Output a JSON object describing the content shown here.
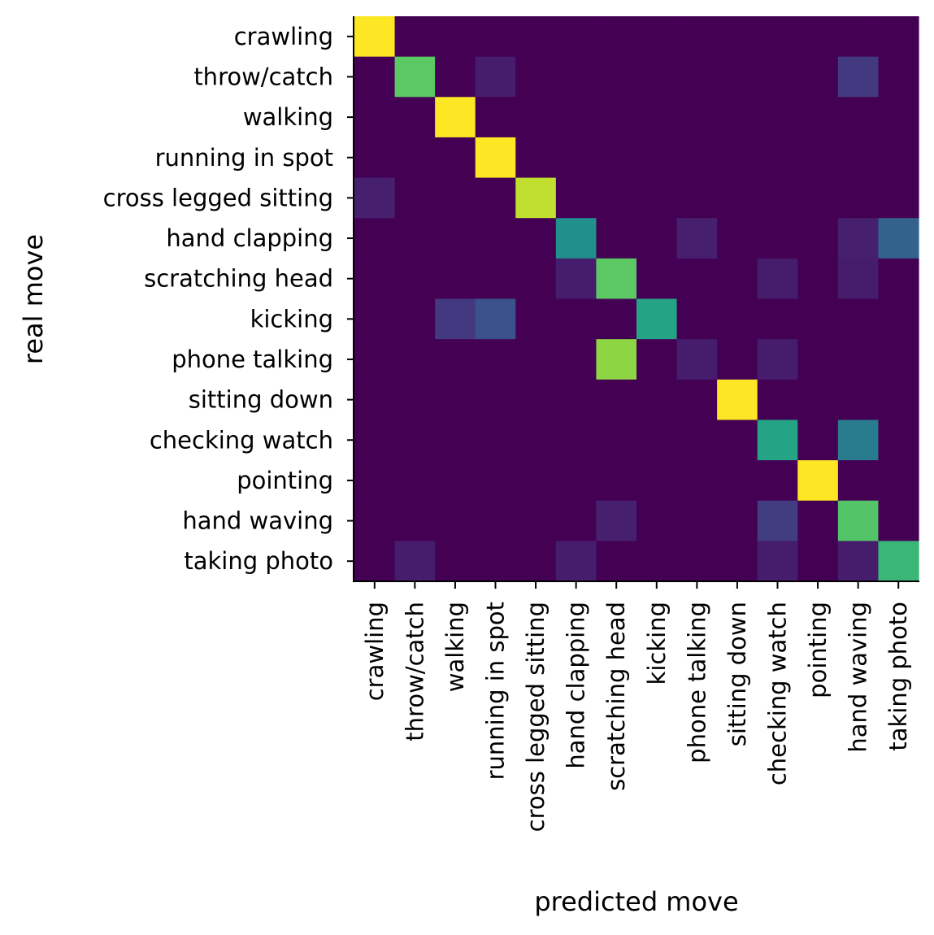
{
  "chart_data": {
    "type": "heatmap",
    "title": "",
    "xlabel": "predicted move",
    "ylabel": "real move",
    "colormap": "viridis",
    "value_range": [
      0,
      1
    ],
    "grid": false,
    "legend": "none",
    "x_categories": [
      "crawling",
      "throw/catch",
      "walking",
      "running in spot",
      "cross legged sitting",
      "hand clapping",
      "scratching head",
      "kicking",
      "phone talking",
      "sitting down",
      "checking watch",
      "pointing",
      "hand waving",
      "taking photo"
    ],
    "y_categories": [
      "crawling",
      "throw/catch",
      "walking",
      "running in spot",
      "cross legged sitting",
      "hand clapping",
      "scratching head",
      "kicking",
      "phone talking",
      "sitting down",
      "checking watch",
      "pointing",
      "hand waving",
      "taking photo"
    ],
    "values": [
      [
        1.0,
        0,
        0,
        0,
        0,
        0,
        0,
        0,
        0,
        0,
        0,
        0,
        0,
        0
      ],
      [
        0,
        0.75,
        0,
        0.08,
        0,
        0,
        0,
        0,
        0,
        0,
        0,
        0,
        0.17,
        0
      ],
      [
        0,
        0,
        1.0,
        0,
        0,
        0,
        0,
        0,
        0,
        0,
        0,
        0,
        0,
        0
      ],
      [
        0,
        0,
        0,
        1.0,
        0,
        0,
        0,
        0,
        0,
        0,
        0,
        0,
        0,
        0
      ],
      [
        0.09,
        0,
        0,
        0,
        0.91,
        0,
        0,
        0,
        0,
        0,
        0,
        0,
        0,
        0
      ],
      [
        0,
        0,
        0,
        0,
        0,
        0.5,
        0,
        0,
        0.09,
        0,
        0,
        0,
        0.09,
        0.32
      ],
      [
        0,
        0,
        0,
        0,
        0,
        0.08,
        0.75,
        0,
        0,
        0,
        0.08,
        0,
        0.08,
        0
      ],
      [
        0,
        0,
        0.17,
        0.25,
        0,
        0,
        0,
        0.58,
        0,
        0,
        0,
        0,
        0,
        0
      ],
      [
        0,
        0,
        0,
        0,
        0,
        0,
        0.83,
        0,
        0.08,
        0,
        0.08,
        0,
        0,
        0
      ],
      [
        0,
        0,
        0,
        0,
        0,
        0,
        0,
        0,
        0,
        1.0,
        0,
        0,
        0,
        0
      ],
      [
        0,
        0,
        0,
        0,
        0,
        0,
        0,
        0,
        0,
        0,
        0.58,
        0,
        0.42,
        0
      ],
      [
        0,
        0,
        0,
        0,
        0,
        0,
        0,
        0,
        0,
        0,
        0,
        1.0,
        0,
        0
      ],
      [
        0,
        0,
        0,
        0,
        0,
        0,
        0.09,
        0,
        0,
        0,
        0.18,
        0,
        0.73,
        0
      ],
      [
        0,
        0.08,
        0,
        0,
        0,
        0.08,
        0,
        0,
        0,
        0,
        0.08,
        0,
        0.08,
        0.67
      ]
    ]
  }
}
